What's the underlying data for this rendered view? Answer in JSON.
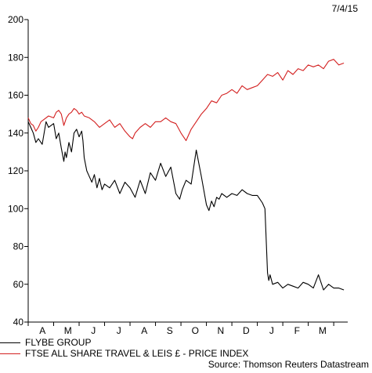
{
  "header": {
    "date": "7/4/15"
  },
  "source": "Source: Thomson Reuters Datastream",
  "colors": {
    "flybe": "#000000",
    "ftse": "#d32020",
    "axis": "#000000"
  },
  "chart_data": {
    "type": "line",
    "title": "",
    "xlabel": "",
    "ylabel": "",
    "ylim": [
      40,
      200
    ],
    "yticks": [
      40,
      60,
      80,
      100,
      120,
      140,
      160,
      180,
      200
    ],
    "xlim": [
      0,
      12.55
    ],
    "xticks": [
      "A",
      "M",
      "J",
      "J",
      "A",
      "S",
      "O",
      "N",
      "D",
      "J",
      "F",
      "M"
    ],
    "grid": false,
    "legend": "bottom-left",
    "series": [
      {
        "name": "FLYBE GROUP",
        "color": "#000000",
        "x": [
          0.0,
          0.1,
          0.2,
          0.3,
          0.4,
          0.55,
          0.7,
          0.8,
          0.9,
          1.0,
          1.1,
          1.2,
          1.3,
          1.4,
          1.45,
          1.5,
          1.6,
          1.7,
          1.8,
          1.9,
          2.0,
          2.1,
          2.15,
          2.2,
          2.3,
          2.4,
          2.5,
          2.6,
          2.7,
          2.8,
          2.9,
          3.0,
          3.2,
          3.4,
          3.6,
          3.8,
          4.0,
          4.2,
          4.4,
          4.6,
          4.8,
          5.0,
          5.2,
          5.4,
          5.6,
          5.8,
          5.95,
          6.05,
          6.2,
          6.4,
          6.6,
          6.8,
          7.0,
          7.1,
          7.2,
          7.3,
          7.4,
          7.5,
          7.6,
          7.8,
          8.0,
          8.2,
          8.4,
          8.6,
          8.8,
          9.0,
          9.2,
          9.3,
          9.4,
          9.45,
          9.5,
          9.6,
          9.8,
          10.0,
          10.2,
          10.4,
          10.6,
          10.8,
          11.0,
          11.2,
          11.4,
          11.6,
          11.8,
          12.0,
          12.2,
          12.4
        ],
        "values": [
          146,
          143,
          140,
          135,
          137,
          134,
          146,
          143,
          144,
          145,
          137,
          140,
          132,
          125,
          130,
          127,
          135,
          130,
          140,
          142,
          138,
          141,
          136,
          127,
          120,
          117,
          114,
          118,
          111,
          116,
          110,
          113,
          111,
          115,
          108,
          114,
          111,
          106,
          115,
          108,
          119,
          115,
          124,
          117,
          122,
          108,
          105,
          110,
          115,
          113,
          131,
          117,
          102,
          99,
          104,
          101,
          106,
          105,
          108,
          106,
          108,
          107,
          110,
          108,
          107,
          107,
          103,
          100,
          66,
          62,
          65,
          60,
          61,
          58,
          60,
          59,
          58,
          61,
          60,
          58,
          65,
          57,
          60,
          58,
          58,
          57
        ]
      },
      {
        "name": "FTSE ALL SHARE TRAVEL & LEIS £ - PRICE INDEX",
        "color": "#d32020",
        "x": [
          0.0,
          0.1,
          0.2,
          0.3,
          0.4,
          0.5,
          0.6,
          0.8,
          1.0,
          1.1,
          1.2,
          1.3,
          1.4,
          1.5,
          1.6,
          1.7,
          1.8,
          1.9,
          2.0,
          2.1,
          2.2,
          2.4,
          2.6,
          2.8,
          3.0,
          3.2,
          3.4,
          3.6,
          3.8,
          4.0,
          4.1,
          4.2,
          4.4,
          4.6,
          4.8,
          5.0,
          5.2,
          5.4,
          5.6,
          5.8,
          6.0,
          6.1,
          6.2,
          6.4,
          6.6,
          6.8,
          7.0,
          7.2,
          7.4,
          7.6,
          7.8,
          8.0,
          8.2,
          8.4,
          8.6,
          8.8,
          9.0,
          9.2,
          9.4,
          9.6,
          9.8,
          10.0,
          10.2,
          10.4,
          10.6,
          10.8,
          11.0,
          11.2,
          11.4,
          11.6,
          11.8,
          12.0,
          12.2,
          12.4
        ],
        "values": [
          148,
          145,
          144,
          141,
          143,
          146,
          147,
          149,
          148,
          151,
          152,
          150,
          144,
          148,
          150,
          151,
          153,
          152,
          150,
          151,
          149,
          148,
          146,
          143,
          145,
          147,
          143,
          145,
          141,
          138,
          137,
          140,
          143,
          145,
          143,
          146,
          146,
          148,
          146,
          145,
          140,
          138,
          136,
          142,
          146,
          150,
          153,
          157,
          156,
          160,
          161,
          163,
          161,
          165,
          163,
          164,
          165,
          168,
          171,
          170,
          172,
          168,
          173,
          171,
          174,
          173,
          176,
          175,
          176,
          174,
          178,
          179,
          176,
          177
        ]
      }
    ]
  }
}
